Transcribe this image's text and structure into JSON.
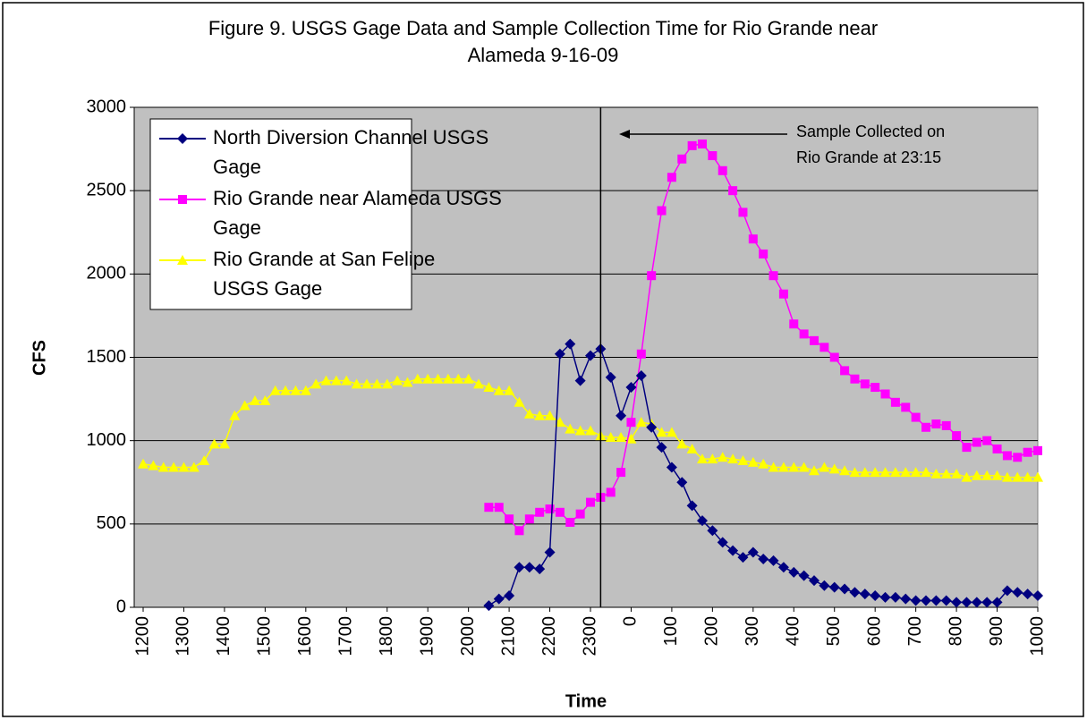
{
  "chart_data": {
    "type": "line",
    "title": "Figure 9. USGS Gage Data and Sample Collection Time for Rio Grande near Alameda 9-16-09",
    "xlabel": "Time",
    "ylabel": "CFS",
    "categories": [
      "1200",
      null,
      null,
      null,
      "1300",
      null,
      null,
      null,
      "1400",
      null,
      null,
      null,
      "1500",
      null,
      null,
      null,
      "1600",
      null,
      null,
      null,
      "1700",
      null,
      null,
      null,
      "1800",
      null,
      null,
      null,
      "1900",
      null,
      null,
      null,
      "2000",
      null,
      null,
      null,
      "2100",
      null,
      null,
      null,
      "2200",
      null,
      null,
      null,
      "2300",
      null,
      null,
      null,
      "0",
      null,
      null,
      null,
      "100",
      null,
      null,
      null,
      "200",
      null,
      null,
      null,
      "300",
      null,
      null,
      null,
      "400",
      null,
      null,
      null,
      "500",
      null,
      null,
      null,
      "600",
      null,
      null,
      null,
      "700",
      null,
      null,
      null,
      "800",
      null,
      null,
      null,
      "900",
      null,
      null,
      null,
      "1000"
    ],
    "series": [
      {
        "name": "North Diversion Channel USGS Gage",
        "color": "#000080",
        "marker": "diamond",
        "values": [
          null,
          null,
          null,
          null,
          null,
          null,
          null,
          null,
          null,
          null,
          null,
          null,
          null,
          null,
          null,
          null,
          null,
          null,
          null,
          null,
          null,
          null,
          null,
          null,
          null,
          null,
          null,
          null,
          null,
          null,
          null,
          null,
          null,
          null,
          10,
          50,
          70,
          240,
          240,
          230,
          330,
          1520,
          1580,
          1360,
          1510,
          1550,
          1380,
          1150,
          1320,
          1390,
          1080,
          960,
          840,
          750,
          610,
          520,
          460,
          390,
          340,
          300,
          330,
          290,
          280,
          240,
          210,
          190,
          160,
          130,
          120,
          110,
          90,
          80,
          70,
          60,
          60,
          50,
          40,
          40,
          40,
          40,
          30,
          30,
          30,
          30,
          30,
          100,
          90,
          80,
          70
        ]
      },
      {
        "name": "Rio Grande near Alameda USGS Gage",
        "color": "#ff00ff",
        "marker": "square",
        "values": [
          null,
          null,
          null,
          null,
          null,
          null,
          null,
          null,
          null,
          null,
          null,
          null,
          null,
          null,
          null,
          null,
          null,
          null,
          null,
          null,
          null,
          null,
          null,
          null,
          null,
          null,
          null,
          null,
          null,
          null,
          null,
          null,
          null,
          null,
          600,
          600,
          530,
          460,
          530,
          570,
          590,
          570,
          510,
          560,
          630,
          660,
          690,
          810,
          1110,
          1520,
          1990,
          2380,
          2580,
          2690,
          2770,
          2780,
          2710,
          2620,
          2500,
          2370,
          2210,
          2120,
          1990,
          1880,
          1700,
          1640,
          1600,
          1560,
          1500,
          1420,
          1370,
          1340,
          1320,
          1280,
          1230,
          1200,
          1140,
          1080,
          1100,
          1090,
          1030,
          960,
          990,
          1000,
          950,
          910,
          900,
          930,
          940
        ]
      },
      {
        "name": "Rio Grande at San Felipe USGS Gage",
        "color": "#ffff00",
        "marker": "triangle",
        "values": [
          860,
          850,
          840,
          840,
          840,
          840,
          880,
          980,
          980,
          1150,
          1210,
          1240,
          1240,
          1300,
          1300,
          1300,
          1300,
          1340,
          1360,
          1360,
          1360,
          1340,
          1340,
          1340,
          1340,
          1360,
          1350,
          1370,
          1370,
          1370,
          1370,
          1370,
          1370,
          1340,
          1320,
          1300,
          1300,
          1230,
          1160,
          1150,
          1150,
          1110,
          1070,
          1060,
          1060,
          1030,
          1020,
          1020,
          1010,
          1110,
          1100,
          1050,
          1050,
          980,
          950,
          890,
          890,
          900,
          890,
          880,
          870,
          860,
          840,
          840,
          840,
          840,
          820,
          840,
          830,
          820,
          810,
          810,
          810,
          810,
          810,
          810,
          810,
          810,
          800,
          800,
          800,
          780,
          790,
          790,
          790,
          780,
          780,
          780,
          780
        ]
      }
    ],
    "ylim": [
      0,
      3000
    ],
    "yticks": [
      0,
      500,
      1000,
      1500,
      2000,
      2500,
      3000
    ],
    "grid": true,
    "plot_background": "#c0c0c0",
    "annotation": "Sample Collected on Rio Grande at 23:15"
  }
}
